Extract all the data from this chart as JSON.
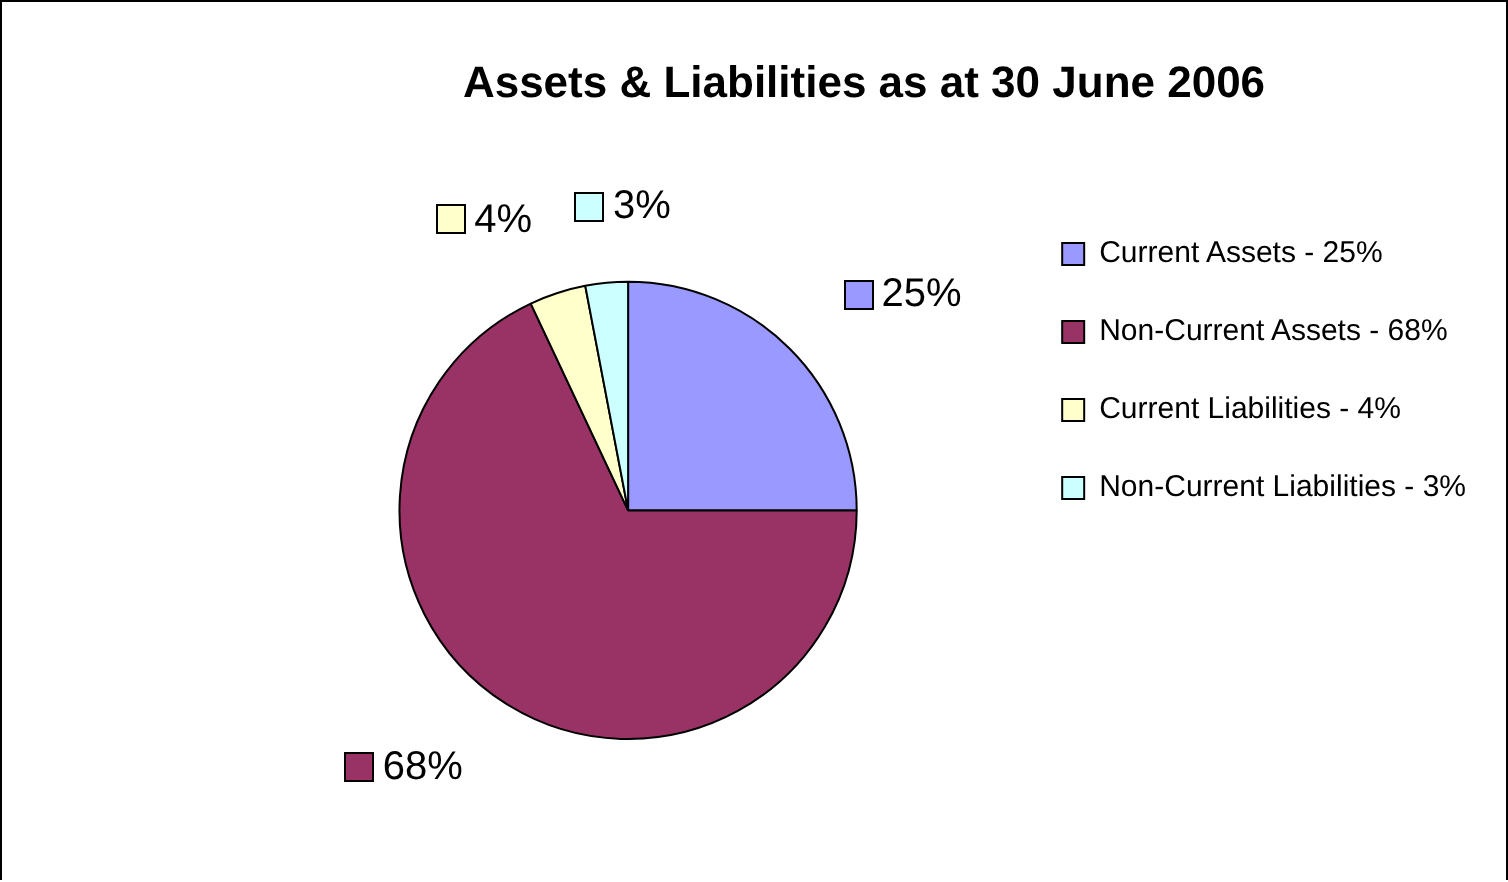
{
  "chart_data": {
    "type": "pie",
    "title": "Assets & Liabilities as at 30 June 2006",
    "categories": [
      "Current Assets - 25%",
      "Non-Current Assets - 68%",
      "Current Liabilities - 4%",
      "Non-Current Liabilities - 3%"
    ],
    "values": [
      25,
      68,
      4,
      3
    ],
    "colors": [
      "#9999ff",
      "#993366",
      "#ffffcc",
      "#ccffff"
    ],
    "value_labels": [
      "25%",
      "68%",
      "4%",
      "3%"
    ],
    "legend": "right"
  }
}
